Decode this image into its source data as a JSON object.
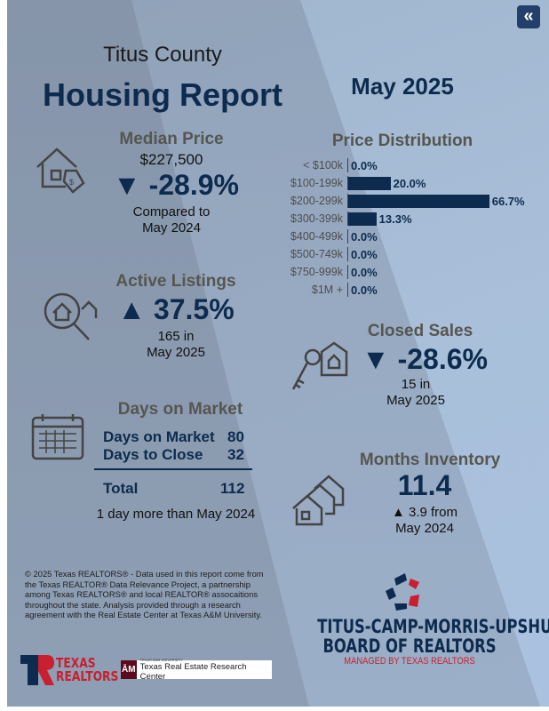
{
  "header": {
    "county": "Titus County",
    "title": "Housing Report",
    "period": "May 2025",
    "back_icon": "double-chevron-left-icon"
  },
  "median_price": {
    "title": "Median Price",
    "value": "$227,500",
    "change": "▼ -28.9%",
    "compare_line1": "Compared to",
    "compare_line2": "May 2024"
  },
  "active_listings": {
    "title": "Active Listings",
    "change": "▲ 37.5%",
    "line1": "165 in",
    "line2": "May 2025"
  },
  "days_on_market": {
    "title": "Days on Market",
    "rows": [
      {
        "label": "Days on Market",
        "value": "80"
      },
      {
        "label": "Days to Close",
        "value": "32"
      }
    ],
    "total_label": "Total",
    "total_value": "112",
    "note": "1 day more than May 2024"
  },
  "price_distribution": {
    "title": "Price Distribution"
  },
  "chart_data": {
    "type": "bar",
    "orientation": "horizontal",
    "title": "Price Distribution",
    "categories": [
      "< $100k",
      "$100-199k",
      "$200-299k",
      "$300-399k",
      "$400-499k",
      "$500-749k",
      "$750-999k",
      "$1M +"
    ],
    "values": [
      0.0,
      20.0,
      66.7,
      13.3,
      0.0,
      0.0,
      0.0,
      0.0
    ],
    "labels": [
      "0.0%",
      "20.0%",
      "66.7%",
      "13.3%",
      "0.0%",
      "0.0%",
      "0.0%",
      "0.0%"
    ],
    "color": "#0d2b4e"
  },
  "closed_sales": {
    "title": "Closed Sales",
    "change": "▼ -28.6%",
    "line1": "15 in",
    "line2": "May 2025"
  },
  "months_inventory": {
    "title": "Months Inventory",
    "value": "11.4",
    "line1": "▲ 3.9 from",
    "line2": "May 2024"
  },
  "footer": {
    "disclaimer": "© 2025 Texas REALTORS® - Data used in this report come from the Texas REALTOR® Data Relevance Project, a partnership among Texas REALTORS® and local REALTOR® assocaitions throughout the state. Analysis provided through a research agreement with the Real Estate Center at Texas A&M University.",
    "tr_logo_line1": "TEXAS",
    "tr_logo_line2": "REALTORS",
    "tamu_small": "TEXAS A&M UNIVERSITY",
    "tamu_center": "Texas Real Estate Research Center",
    "board_line1": "TITUS-CAMP-MORRIS-UPSHUR",
    "board_line2": "BOARD OF REALTORS",
    "board_line3": "MANAGED BY TEXAS REALTORS"
  },
  "colors": {
    "navy": "#0d2b4e",
    "red": "#c8202f",
    "heading_gray": "#56564f"
  }
}
